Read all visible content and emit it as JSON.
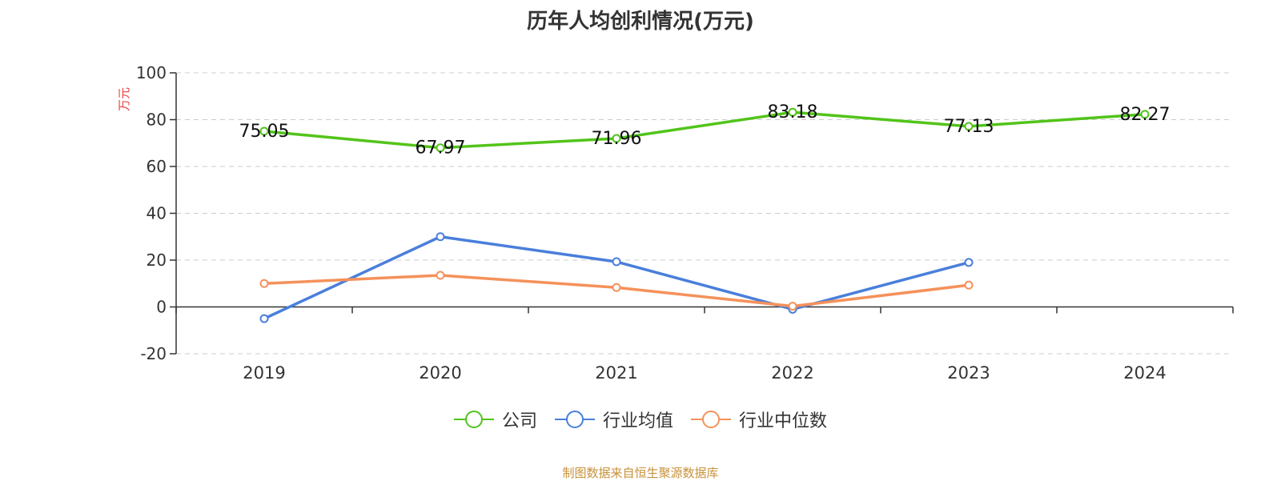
{
  "chart_data": {
    "type": "line",
    "title": "历年人均创利情况(万元)",
    "ylabel": "万元",
    "categories": [
      "2019",
      "2020",
      "2021",
      "2022",
      "2023",
      "2024"
    ],
    "ylim": [
      -20,
      100
    ],
    "yticks": [
      -20,
      0,
      20,
      40,
      60,
      80,
      100
    ],
    "grid": true,
    "legend_position": "bottom",
    "series": [
      {
        "name": "公司",
        "color": "#52c41a",
        "values": [
          75.05,
          67.97,
          71.96,
          83.18,
          77.13,
          82.27
        ],
        "labels": [
          "75.05",
          "67.97",
          "71.96",
          "83.18",
          "77.13",
          "82.27"
        ]
      },
      {
        "name": "行业均值",
        "color": "#4a7fdb",
        "values": [
          -5,
          30,
          19.3,
          -1,
          19,
          null
        ]
      },
      {
        "name": "行业中位数",
        "color": "#f5915a",
        "values": [
          10,
          13.5,
          8.3,
          0.3,
          9.3,
          null
        ]
      }
    ]
  },
  "source_note": "制图数据来自恒生聚源数据库"
}
